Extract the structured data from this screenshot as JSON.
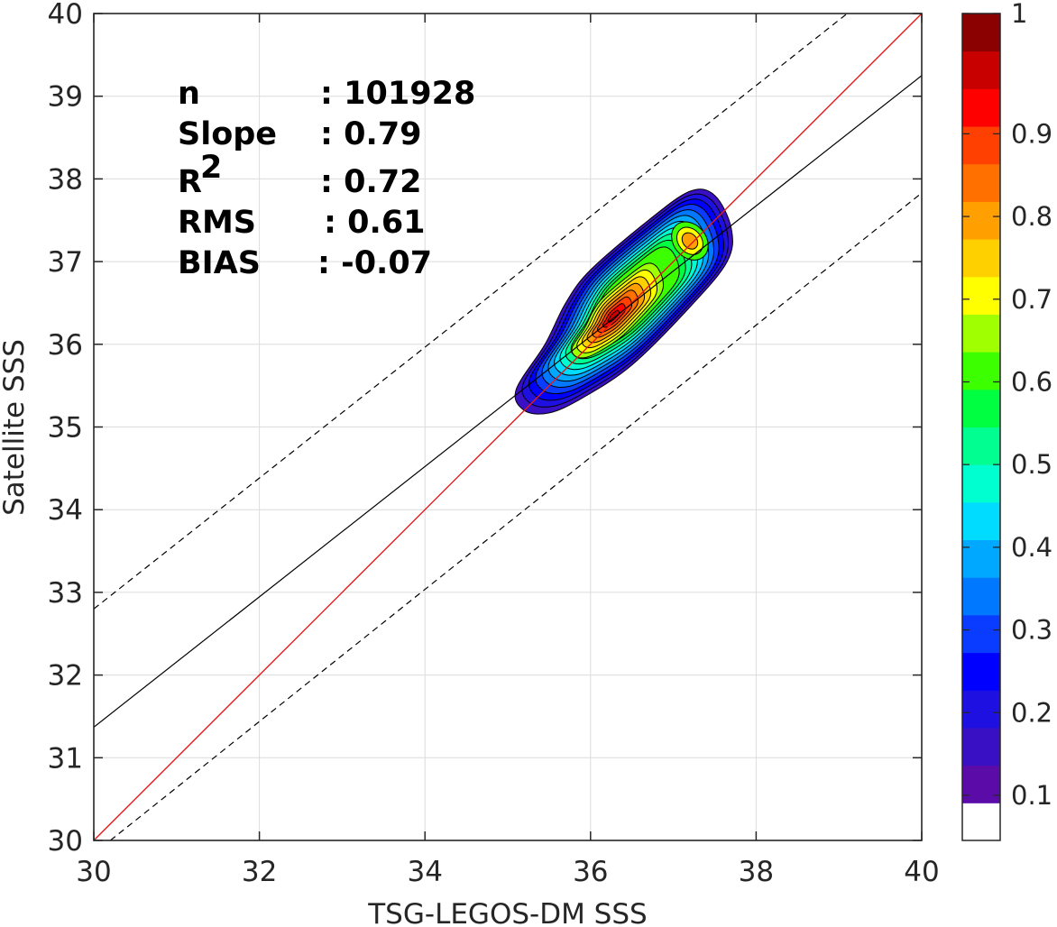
{
  "chart_data": {
    "type": "contour_scatter",
    "xlabel": "TSG-LEGOS-DM SSS",
    "ylabel": "Satellite SSS",
    "xlim": [
      30,
      40
    ],
    "ylim": [
      30,
      40
    ],
    "xticks": [
      "30",
      "32",
      "34",
      "36",
      "38",
      "40"
    ],
    "yticks": [
      "30",
      "31",
      "32",
      "33",
      "34",
      "35",
      "36",
      "37",
      "38",
      "39",
      "40"
    ],
    "grid": true,
    "stats": [
      {
        "label": "n",
        "value": ": 101928"
      },
      {
        "label": "Slope",
        "value": ": 0.79"
      },
      {
        "label": "R",
        "sup": "2",
        "value": ": 0.72"
      },
      {
        "label": "RMS",
        "value": ": 0.61"
      },
      {
        "label": "BIAS",
        "value": ": -0.07"
      }
    ],
    "lines": {
      "identity": {
        "slope": 1,
        "intercept": 0,
        "color": "#e41a1c"
      },
      "fit": {
        "slope": 0.79,
        "points": [
          [
            30,
            31.37
          ],
          [
            40,
            39.25
          ]
        ],
        "color": "#000000"
      },
      "upper_bound": {
        "points": [
          [
            30,
            32.8
          ],
          [
            39.1,
            40
          ]
        ],
        "style": "dashed"
      },
      "lower_bound": {
        "points": [
          [
            30.2,
            30
          ],
          [
            40,
            37.83
          ]
        ],
        "style": "dashed"
      }
    },
    "density": {
      "peak": [
        36.27,
        36.33
      ],
      "secondary_peak": [
        37.2,
        37.25
      ],
      "levels": [
        0.05,
        0.1,
        0.15,
        0.2,
        0.25,
        0.3,
        0.35,
        0.4,
        0.45,
        0.5,
        0.55,
        0.6,
        0.65,
        0.7,
        0.75,
        0.8,
        0.85,
        0.9,
        0.95
      ]
    },
    "colorbar": {
      "range": [
        0,
        1
      ],
      "ticks": [
        "0.1",
        "0.2",
        "0.3",
        "0.4",
        "0.5",
        "0.6",
        "0.7",
        "0.8",
        "0.9",
        "1"
      ],
      "colors": [
        "#ffffff",
        "#5b0ba8",
        "#3a10c4",
        "#1e10e0",
        "#0000ff",
        "#0a3cff",
        "#0078ff",
        "#00a8ff",
        "#00dcff",
        "#00ffd0",
        "#00ff90",
        "#00ff40",
        "#3cff00",
        "#a0ff00",
        "#ffff00",
        "#ffd000",
        "#ffa000",
        "#ff7000",
        "#ff4000",
        "#ff0000",
        "#c80000",
        "#8b0000"
      ]
    }
  }
}
